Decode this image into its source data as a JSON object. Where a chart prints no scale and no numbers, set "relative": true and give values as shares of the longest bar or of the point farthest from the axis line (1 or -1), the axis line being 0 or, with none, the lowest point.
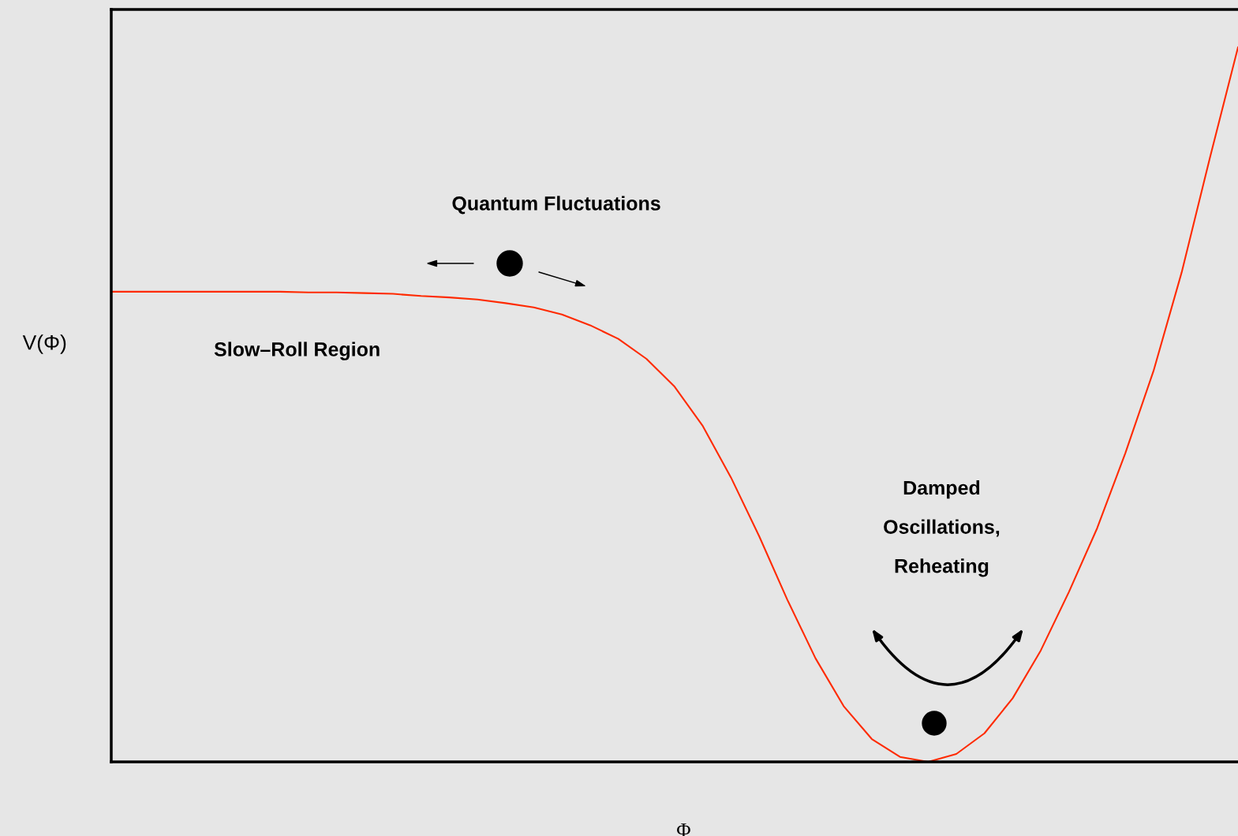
{
  "chart_data": {
    "type": "line",
    "xlabel": "Φ",
    "ylabel": "V(Φ)",
    "relative": true,
    "categories": [
      null,
      null,
      null,
      null,
      null,
      null,
      null,
      null,
      null,
      null,
      null,
      null,
      null,
      null,
      null,
      null,
      null,
      null,
      null,
      null,
      null,
      null,
      null,
      null,
      null,
      null,
      null,
      null,
      null,
      null,
      null,
      null,
      null,
      null,
      null,
      null,
      null,
      null,
      null,
      null,
      null
    ],
    "series": [
      {
        "color": "#ff2a00",
        "values": [
          0.658,
          0.658,
          0.658,
          0.658,
          0.658,
          0.658,
          0.658,
          0.657,
          0.657,
          0.656,
          0.655,
          0.652,
          0.65,
          0.647,
          0.642,
          0.636,
          0.626,
          0.611,
          0.592,
          0.564,
          0.525,
          0.47,
          0.398,
          0.316,
          0.227,
          0.145,
          0.078,
          0.032,
          0.007,
          0,
          0.011,
          0.04,
          0.089,
          0.156,
          0.238,
          0.327,
          0.432,
          0.547,
          0.685,
          0.845,
          1
        ]
      }
    ],
    "annotations": [
      "Quantum Fluctuations",
      "Slow–Roll Region",
      "Damped Oscillations, Reheating"
    ]
  }
}
